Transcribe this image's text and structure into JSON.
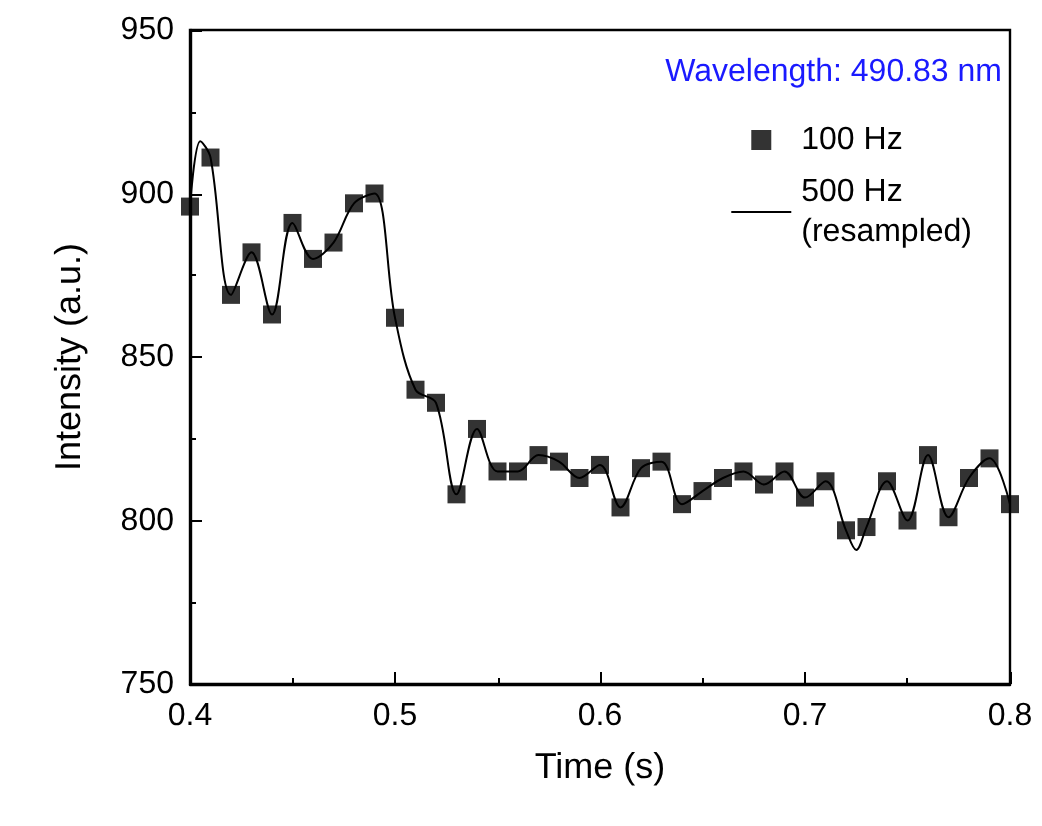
{
  "chart_data": {
    "type": "scatter",
    "xlabel": "Time (s)",
    "ylabel": "Intensity (a.u.)",
    "annotations": [
      "Wavelength: 490.83 nm"
    ],
    "xlim": [
      0.4,
      0.8
    ],
    "xticks": [
      0.4,
      0.5,
      0.6,
      0.7,
      0.8
    ],
    "ylim": [
      750,
      950
    ],
    "yticks": [
      750,
      800,
      850,
      900,
      950
    ],
    "grid": false,
    "legend": "top right",
    "series": [
      {
        "name": "100 Hz",
        "type": "scatter",
        "marker": "square",
        "color": "#000000",
        "x": [
          0.4,
          0.41,
          0.42,
          0.43,
          0.44,
          0.45,
          0.46,
          0.47,
          0.48,
          0.49,
          0.5,
          0.51,
          0.52,
          0.53,
          0.54,
          0.55,
          0.56,
          0.57,
          0.58,
          0.59,
          0.6,
          0.61,
          0.62,
          0.63,
          0.64,
          0.65,
          0.66,
          0.67,
          0.68,
          0.69,
          0.7,
          0.71,
          0.72,
          0.73,
          0.74,
          0.75,
          0.76,
          0.77,
          0.78,
          0.79,
          0.8
        ],
        "values": [
          896,
          911,
          869,
          882,
          863,
          891,
          880,
          885,
          897,
          900,
          862,
          840,
          836,
          808,
          828,
          815,
          815,
          820,
          818,
          813,
          817,
          804,
          816,
          818,
          805,
          809,
          813,
          815,
          811,
          815,
          807,
          812,
          797,
          798,
          812,
          800,
          820,
          801,
          813,
          819,
          805
        ]
      },
      {
        "name": "500 Hz\n(resampled)",
        "type": "line",
        "marker": "none",
        "line_style": "solid",
        "color": "#000000",
        "x": [
          0.4,
          0.405,
          0.41,
          0.42,
          0.43,
          0.44,
          0.45,
          0.46,
          0.47,
          0.48,
          0.49,
          0.5,
          0.51,
          0.52,
          0.53,
          0.54,
          0.55,
          0.56,
          0.57,
          0.58,
          0.59,
          0.6,
          0.61,
          0.62,
          0.63,
          0.64,
          0.65,
          0.66,
          0.67,
          0.68,
          0.69,
          0.7,
          0.71,
          0.72,
          0.725,
          0.73,
          0.74,
          0.75,
          0.76,
          0.77,
          0.78,
          0.79,
          0.8
        ],
        "values": [
          896,
          916,
          911,
          869,
          882,
          863,
          891,
          880,
          885,
          897,
          900,
          862,
          840,
          836,
          808,
          828,
          815,
          815,
          820,
          818,
          813,
          817,
          804,
          816,
          818,
          805,
          809,
          813,
          815,
          811,
          815,
          807,
          812,
          797,
          791,
          798,
          812,
          800,
          820,
          801,
          813,
          819,
          805
        ]
      }
    ]
  }
}
